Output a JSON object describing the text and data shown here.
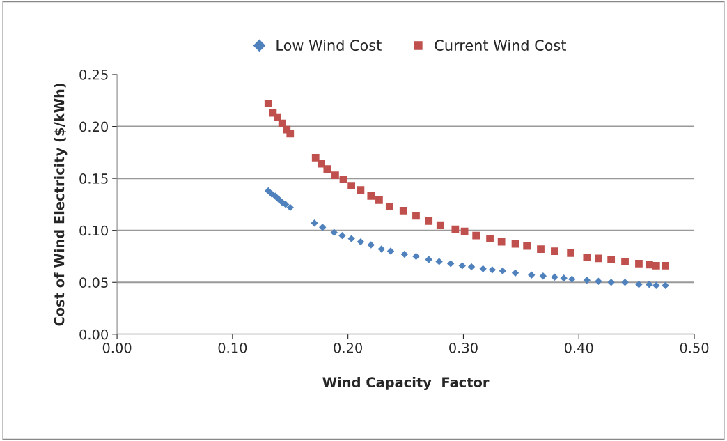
{
  "chart_data": {
    "type": "scatter",
    "xlabel": "Wind Capacity  Factor",
    "ylabel": "Cost of Wind Electricity ($/kWh)",
    "xlim": [
      0,
      0.5
    ],
    "xticks": [
      {
        "value": 0,
        "label": "0.00"
      },
      {
        "value": 0.1,
        "label": "0.10"
      },
      {
        "value": 0.2,
        "label": "0.20"
      },
      {
        "value": 0.3,
        "label": "0.30"
      },
      {
        "value": 0.4,
        "label": "0.40"
      },
      {
        "value": 0.5,
        "label": "0.50"
      }
    ],
    "ylim": [
      0,
      0.25
    ],
    "yticks": [
      {
        "value": 0,
        "label": "0.00"
      },
      {
        "value": 0.05,
        "label": "0.05"
      },
      {
        "value": 0.1,
        "label": "0.10"
      },
      {
        "value": 0.15,
        "label": "0.15"
      },
      {
        "value": 0.2,
        "label": "0.20"
      },
      {
        "value": 0.25,
        "label": "0.25"
      }
    ],
    "grid": "y",
    "legend": "top",
    "series": [
      {
        "name": "Low Wind Cost",
        "color": "#4f81bd",
        "marker": "diamond",
        "x": [
          0.131,
          0.134,
          0.137,
          0.14,
          0.143,
          0.146,
          0.15,
          0.171,
          0.178,
          0.188,
          0.195,
          0.203,
          0.211,
          0.22,
          0.229,
          0.237,
          0.249,
          0.259,
          0.27,
          0.279,
          0.289,
          0.299,
          0.307,
          0.317,
          0.325,
          0.334,
          0.345,
          0.359,
          0.369,
          0.379,
          0.387,
          0.394,
          0.407,
          0.417,
          0.428,
          0.44,
          0.452,
          0.461,
          0.467,
          0.475
        ],
        "values": [
          0.138,
          0.135,
          0.133,
          0.13,
          0.127,
          0.125,
          0.122,
          0.107,
          0.103,
          0.098,
          0.095,
          0.092,
          0.089,
          0.086,
          0.082,
          0.08,
          0.077,
          0.075,
          0.072,
          0.07,
          0.068,
          0.066,
          0.065,
          0.063,
          0.062,
          0.061,
          0.059,
          0.057,
          0.056,
          0.055,
          0.054,
          0.053,
          0.052,
          0.051,
          0.05,
          0.05,
          0.048,
          0.048,
          0.047,
          0.047
        ]
      },
      {
        "name": "Current Wind Cost",
        "color": "#c0504d",
        "marker": "square",
        "x": [
          0.131,
          0.135,
          0.139,
          0.143,
          0.147,
          0.15,
          0.172,
          0.177,
          0.182,
          0.189,
          0.196,
          0.203,
          0.211,
          0.22,
          0.227,
          0.236,
          0.248,
          0.259,
          0.27,
          0.28,
          0.293,
          0.301,
          0.311,
          0.323,
          0.333,
          0.345,
          0.355,
          0.367,
          0.379,
          0.393,
          0.407,
          0.417,
          0.428,
          0.44,
          0.452,
          0.461,
          0.467,
          0.475
        ],
        "values": [
          0.222,
          0.213,
          0.209,
          0.203,
          0.197,
          0.193,
          0.17,
          0.164,
          0.159,
          0.153,
          0.149,
          0.143,
          0.139,
          0.133,
          0.129,
          0.123,
          0.119,
          0.114,
          0.109,
          0.105,
          0.101,
          0.099,
          0.095,
          0.092,
          0.089,
          0.087,
          0.085,
          0.082,
          0.08,
          0.078,
          0.074,
          0.073,
          0.072,
          0.07,
          0.068,
          0.067,
          0.066,
          0.066
        ]
      }
    ]
  }
}
